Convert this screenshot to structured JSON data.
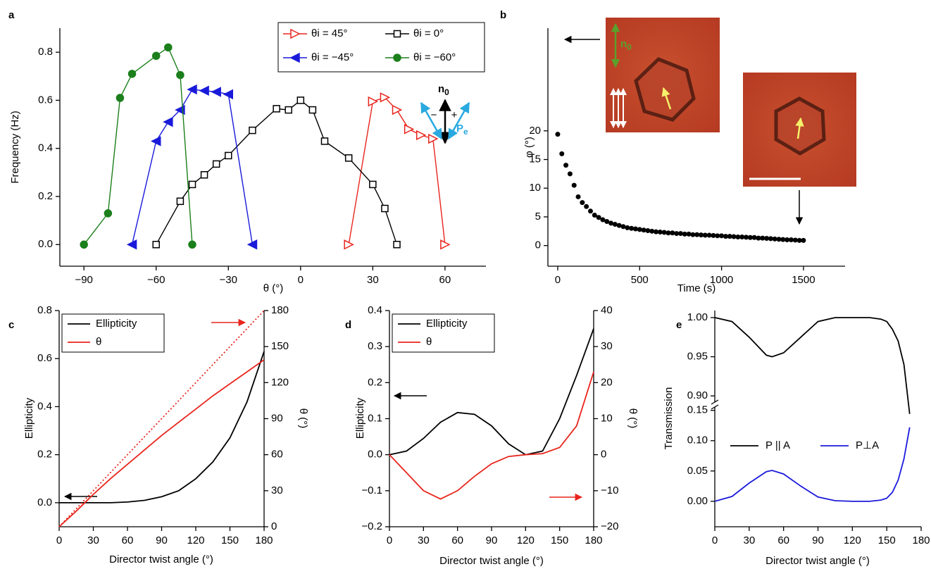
{
  "chart_data": [
    {
      "type": "line",
      "label": "a",
      "x_label": "θ (°)",
      "y_label": "Frequency (Hz)",
      "xlim": [
        -100,
        77
      ],
      "ylim": [
        -0.09,
        0.9
      ],
      "xticks": [
        {
          "value": -90,
          "label": "−90"
        },
        {
          "value": -60,
          "label": "−60"
        },
        {
          "value": -30,
          "label": "−30"
        },
        0,
        30,
        60
      ],
      "yticks": [
        {
          "value": 0,
          "label": "0.0"
        },
        {
          "value": 0.2,
          "label": "0.2"
        },
        {
          "value": 0.4,
          "label": "0.4"
        },
        {
          "value": 0.6,
          "label": "0.6"
        },
        {
          "value": 0.8,
          "label": "0.8"
        }
      ],
      "series": [
        {
          "name": "θi = 45°",
          "color": "#e8251d",
          "marker": "triangle-right-open",
          "x": [
            20,
            30,
            35,
            40,
            45,
            50,
            55,
            60
          ],
          "values": [
            0,
            0.595,
            0.612,
            0.56,
            0.48,
            0.455,
            0.44,
            0
          ]
        },
        {
          "name": "θi = 0°",
          "color": "#000000",
          "marker": "square-open",
          "x": [
            -60,
            -50,
            -45,
            -40,
            -35,
            -30,
            -20,
            -10,
            -5,
            0,
            5,
            10,
            20,
            30,
            35,
            40
          ],
          "values": [
            0,
            0.18,
            0.25,
            0.29,
            0.335,
            0.37,
            0.475,
            0.565,
            0.56,
            0.6,
            0.56,
            0.43,
            0.36,
            0.25,
            0.15,
            0
          ]
        },
        {
          "name": "θi = −45°",
          "color": "#1a1adb",
          "marker": "triangle-left-filled",
          "x": [
            -70,
            -60,
            -55,
            -50,
            -45,
            -40,
            -35,
            -30,
            -20
          ],
          "values": [
            0,
            0.43,
            0.51,
            0.56,
            0.645,
            0.64,
            0.635,
            0.625,
            0
          ]
        },
        {
          "name": "θi = −60°",
          "color": "#1b7f1b",
          "marker": "circle-filled",
          "x": [
            -90,
            -80,
            -75,
            -70,
            -60,
            -55,
            -50,
            -45
          ],
          "values": [
            0,
            0.13,
            0.61,
            0.71,
            0.785,
            0.82,
            0.705,
            0
          ]
        }
      ],
      "annotations": [
        {
          "text": "n",
          "sub": "0"
        },
        {
          "text": "−"
        },
        {
          "text": "+"
        },
        {
          "text": "P",
          "sub": "e"
        }
      ]
    },
    {
      "type": "scatter",
      "label": "b",
      "x_label": "Time (s)",
      "y_label": "φ (°)",
      "xlim": [
        -60,
        1754
      ],
      "ylim": [
        -3.6,
        37.9
      ],
      "xticks": [
        0,
        500,
        1000,
        1500
      ],
      "yticks": [
        0,
        5,
        10,
        15,
        20
      ],
      "x": [
        0,
        25,
        50,
        75,
        100,
        125,
        150,
        175,
        200,
        225,
        250,
        275,
        300,
        325,
        350,
        375,
        400,
        425,
        450,
        475,
        500,
        525,
        550,
        575,
        600,
        625,
        650,
        675,
        700,
        725,
        750,
        775,
        800,
        825,
        850,
        875,
        900,
        925,
        950,
        975,
        1000,
        1025,
        1050,
        1075,
        1100,
        1125,
        1150,
        1175,
        1200,
        1225,
        1250,
        1275,
        1300,
        1325,
        1350,
        1375,
        1400,
        1425,
        1450,
        1475,
        1500
      ],
      "values": [
        19.4,
        16,
        14,
        12.5,
        10.5,
        8.5,
        7.5,
        6.8,
        6,
        5.3,
        4.9,
        4.5,
        4.2,
        3.9,
        3.7,
        3.5,
        3.3,
        3.1,
        3.0,
        2.9,
        2.8,
        2.7,
        2.6,
        2.5,
        2.4,
        2.35,
        2.3,
        2.2,
        2.2,
        2.1,
        2.1,
        2.0,
        2.0,
        1.9,
        1.9,
        1.85,
        1.8,
        1.8,
        1.75,
        1.7,
        1.7,
        1.6,
        1.6,
        1.55,
        1.5,
        1.5,
        1.45,
        1.4,
        1.4,
        1.3,
        1.3,
        1.25,
        1.2,
        1.15,
        1.1,
        1.05,
        1.0,
        1.0,
        0.95,
        0.9,
        0.9
      ],
      "color": "#000000",
      "annotations": [
        {
          "text": "n",
          "sub": "0"
        }
      ]
    },
    {
      "type": "line",
      "label": "c",
      "x_label": "Director twist angle (°)",
      "y_label": "Ellipticity",
      "y2_label": "θ (°)",
      "xlim": [
        0,
        180
      ],
      "ylim": [
        -0.1,
        0.8
      ],
      "y2lim": [
        0,
        180
      ],
      "xticks": [
        0,
        30,
        60,
        90,
        120,
        150,
        180
      ],
      "yticks": [
        {
          "value": 0,
          "label": "0.0"
        },
        {
          "value": 0.2,
          "label": "0.2"
        },
        {
          "value": 0.4,
          "label": "0.4"
        },
        {
          "value": 0.6,
          "label": "0.6"
        },
        {
          "value": 0.8,
          "label": "0.8"
        }
      ],
      "y2ticks": [
        0,
        30,
        60,
        90,
        120,
        150,
        180
      ],
      "x": [
        0,
        15,
        30,
        45,
        60,
        75,
        90,
        105,
        120,
        135,
        150,
        165,
        180
      ],
      "series": [
        {
          "name": "Ellipticity",
          "color": "#000000",
          "values": [
            0,
            0,
            0,
            0,
            0.003,
            0.01,
            0.025,
            0.05,
            0.1,
            0.17,
            0.27,
            0.42,
            0.63
          ]
        },
        {
          "name": "θ",
          "color": "#e8251d",
          "axis": "y2",
          "values": [
            0,
            13,
            27,
            40,
            52,
            64,
            76,
            87,
            98,
            109,
            119,
            129,
            139
          ]
        },
        {
          "color": "#e8251d",
          "axis": "y2",
          "style": "dotted",
          "x": [
            0,
            180
          ],
          "values": [
            0,
            180
          ]
        }
      ]
    },
    {
      "type": "line",
      "label": "d",
      "x_label": "Director twist angle (°)",
      "y_label": "Ellipticity",
      "y2_label": "θ (°)",
      "xlim": [
        0,
        180
      ],
      "ylim": [
        -0.2,
        0.4
      ],
      "y2lim": [
        -20,
        40
      ],
      "xticks": [
        0,
        30,
        60,
        90,
        120,
        150,
        180
      ],
      "yticks": [
        {
          "value": -0.2,
          "label": "−0.2"
        },
        {
          "value": -0.1,
          "label": "−0.1"
        },
        {
          "value": 0,
          "label": "0.0"
        },
        0.1,
        0.2,
        0.3,
        0.4
      ],
      "y2ticks": [
        {
          "value": -20,
          "label": "−20"
        },
        {
          "value": -10,
          "label": "−10"
        },
        0,
        10,
        20,
        30,
        40
      ],
      "x": [
        0,
        15,
        30,
        45,
        60,
        75,
        90,
        105,
        120,
        135,
        150,
        165,
        180
      ],
      "series": [
        {
          "name": "Ellipticity",
          "color": "#000000",
          "values": [
            0,
            0.01,
            0.045,
            0.09,
            0.117,
            0.112,
            0.08,
            0.03,
            0,
            0.01,
            0.1,
            0.22,
            0.35
          ]
        },
        {
          "name": "θ",
          "color": "#e8251d",
          "axis": "y2",
          "values": [
            0,
            -5,
            -10,
            -12.3,
            -10,
            -6,
            -2.5,
            -0.5,
            0,
            0.3,
            2,
            8,
            23
          ]
        }
      ]
    },
    {
      "type": "line",
      "label": "e",
      "x_label": "Director twist angle (°)",
      "y_label": "Transmission",
      "xlim": [
        0,
        180
      ],
      "ylim": [
        -0.042,
        0.159
      ],
      "ylim_upper": [
        0.875,
        1.009
      ],
      "xticks": [
        0,
        30,
        60,
        90,
        120,
        150,
        180
      ],
      "yticks": [
        {
          "value": 0,
          "label": "0.00"
        },
        {
          "value": 0.05,
          "label": "0.05"
        },
        {
          "value": 0.1,
          "label": "0.10"
        },
        {
          "value": 0.15,
          "label": "0.15"
        }
      ],
      "yticks_upper": [
        {
          "value": 0.9,
          "label": "0.90"
        },
        {
          "value": 0.95,
          "label": "0.95"
        },
        {
          "value": 1,
          "label": "1.00"
        }
      ],
      "x": [
        0,
        15,
        30,
        45,
        50,
        60,
        75,
        90,
        105,
        120,
        135,
        145,
        150,
        155,
        160,
        165,
        170
      ],
      "series": [
        {
          "name": "P || A",
          "color": "#000000",
          "axis": "upper",
          "values": [
            1,
            0.995,
            0.975,
            0.952,
            0.95,
            0.955,
            0.975,
            0.995,
            1,
            1,
            1,
            0.998,
            0.995,
            0.985,
            0.97,
            0.94,
            0.877
          ]
        },
        {
          "name": "P⊥A",
          "color": "#1a1adb",
          "values": [
            0,
            0.008,
            0.03,
            0.049,
            0.051,
            0.045,
            0.025,
            0.007,
            0.001,
            0,
            0,
            0.002,
            0.005,
            0.015,
            0.035,
            0.07,
            0.122
          ]
        }
      ]
    }
  ]
}
